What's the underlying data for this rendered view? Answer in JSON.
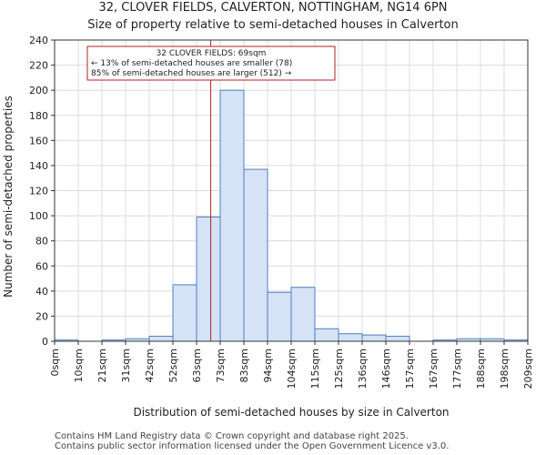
{
  "chart_data": {
    "type": "bar",
    "title": "32, CLOVER FIELDS, CALVERTON, NOTTINGHAM, NG14 6PN",
    "subtitle": "Size of property relative to semi-detached houses in Calverton",
    "xlabel": "Distribution of semi-detached houses by size in Calverton",
    "ylabel": "Number of semi-detached properties",
    "ylim": [
      0,
      240
    ],
    "yticks": [
      0,
      20,
      40,
      60,
      80,
      100,
      120,
      140,
      160,
      180,
      200,
      220,
      240
    ],
    "bin_edges": [
      "0sqm",
      "10sqm",
      "21sqm",
      "31sqm",
      "42sqm",
      "52sqm",
      "63sqm",
      "73sqm",
      "83sqm",
      "94sqm",
      "104sqm",
      "115sqm",
      "125sqm",
      "136sqm",
      "146sqm",
      "157sqm",
      "167sqm",
      "177sqm",
      "188sqm",
      "198sqm",
      "209sqm"
    ],
    "values": [
      1,
      0,
      1,
      2,
      4,
      45,
      99,
      200,
      137,
      39,
      43,
      10,
      6,
      5,
      4,
      0,
      1,
      2,
      2,
      1
    ],
    "bar_color": "#d6e2f5",
    "bar_edge_color": "#4f7ec4",
    "marker": {
      "position_bins": 6.6,
      "color": "#b22222",
      "annotation": [
        "32 CLOVER FIELDS: 69sqm",
        "← 13% of semi-detached houses are smaller (78)",
        "85% of semi-detached houses are larger (512) →"
      ]
    }
  },
  "footer": {
    "line1": "Contains HM Land Registry data © Crown copyright and database right 2025.",
    "line2": "Contains public sector information licensed under the Open Government Licence v3.0."
  }
}
